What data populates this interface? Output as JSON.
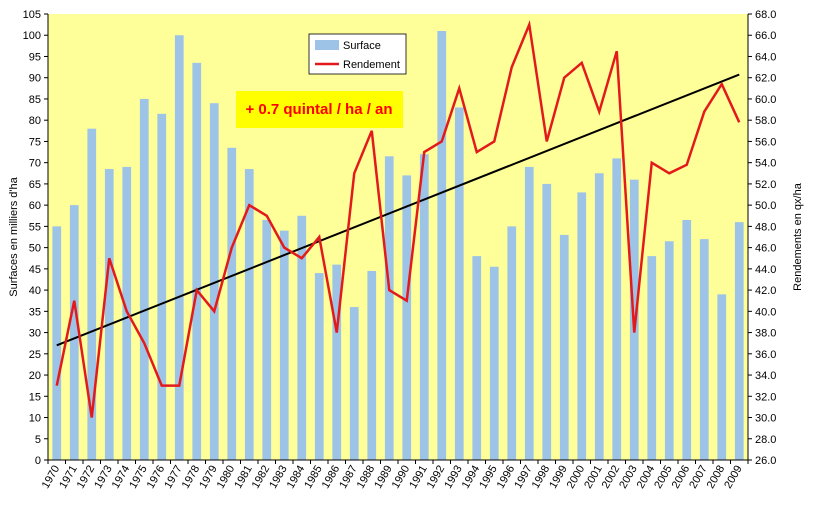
{
  "chart_data": {
    "type": "bar+line",
    "categories": [
      "1970",
      "1971",
      "1972",
      "1973",
      "1974",
      "1975",
      "1976",
      "1977",
      "1978",
      "1979",
      "1980",
      "1981",
      "1982",
      "1983",
      "1984",
      "1985",
      "1986",
      "1987",
      "1988",
      "1989",
      "1990",
      "1991",
      "1992",
      "1993",
      "1994",
      "1995",
      "1996",
      "1997",
      "1998",
      "1999",
      "2000",
      "2001",
      "2002",
      "2003",
      "2004",
      "2005",
      "2006",
      "2007",
      "2008",
      "2009"
    ],
    "series": [
      {
        "name": "Surface",
        "kind": "bar",
        "axis": "left",
        "color": "#9dc3e6",
        "values": [
          55,
          60,
          78,
          68.5,
          69,
          85,
          81.5,
          100,
          93.5,
          84,
          73.5,
          68.5,
          56.5,
          54,
          57.5,
          44,
          46,
          36,
          44.5,
          71.5,
          67,
          72,
          101,
          83,
          48,
          45.5,
          55,
          69,
          65,
          53,
          63,
          67.5,
          71,
          66,
          48,
          51.5,
          56.5,
          52,
          39,
          56
        ]
      },
      {
        "name": "Rendement",
        "kind": "line",
        "axis": "right",
        "color": "#e31a1c",
        "values": [
          33,
          41,
          30,
          45,
          40,
          37,
          33,
          33,
          42,
          40,
          46,
          50,
          49,
          46,
          45,
          47,
          38,
          53,
          57,
          42,
          41,
          55,
          56,
          61,
          55,
          56,
          63,
          67,
          56,
          62,
          63.4,
          58.8,
          64.5,
          38,
          54,
          53,
          53.8,
          58.8,
          61.4,
          57.8
        ]
      }
    ],
    "trend": {
      "axis": "right",
      "color": "#000000",
      "from": [
        "1970",
        36.8
      ],
      "to": [
        "2009",
        62.3
      ]
    },
    "annotation": "+ 0.7 quintal / ha / an",
    "ylabel_left": "Surfaces en milliers d'ha",
    "ylabel_right": "Rendements en qx/ha",
    "ylim_left": [
      0,
      105
    ],
    "yticks_left": [
      "0",
      "5",
      "10",
      "15",
      "20",
      "25",
      "30",
      "35",
      "40",
      "45",
      "50",
      "55",
      "60",
      "65",
      "70",
      "75",
      "80",
      "85",
      "90",
      "95",
      "100",
      "105"
    ],
    "ylim_right": [
      26,
      68
    ],
    "yticks_right": [
      "26.0",
      "28.0",
      "30.0",
      "32.0",
      "34.0",
      "36.0",
      "38.0",
      "40.0",
      "42.0",
      "44.0",
      "46.0",
      "48.0",
      "50.0",
      "52.0",
      "54.0",
      "56.0",
      "58.0",
      "60.0",
      "62.0",
      "64.0",
      "66.0",
      "68.0"
    ],
    "legend_position": "top-center",
    "grid": false,
    "plot_background": "#ffff99",
    "annotation_background": "#ffff00"
  }
}
